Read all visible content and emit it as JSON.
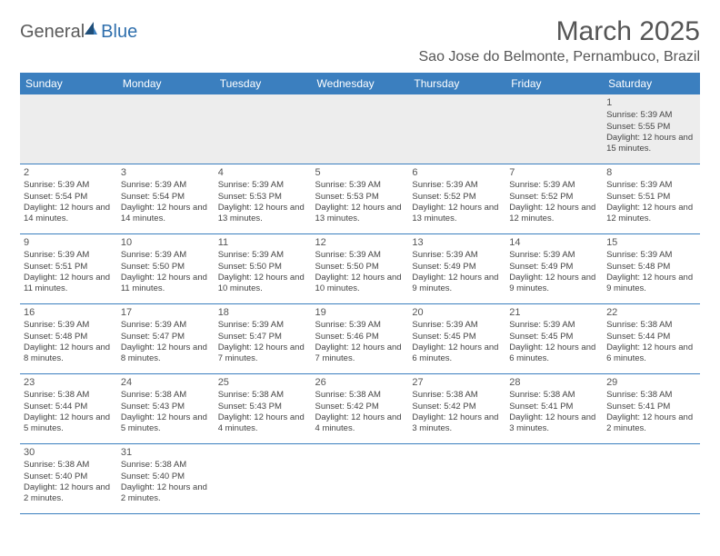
{
  "logo": {
    "text1": "General",
    "text2": "Blue",
    "sail_color_dark": "#1f4e79",
    "sail_color_light": "#3b7fbf"
  },
  "header": {
    "title": "March 2025",
    "location": "Sao Jose do Belmonte, Pernambuco, Brazil"
  },
  "colors": {
    "header_bg": "#3b7fbf",
    "header_text": "#ffffff",
    "border": "#3b7fbf",
    "text": "#444444",
    "empty_bg": "#ededed"
  },
  "daysOfWeek": [
    "Sunday",
    "Monday",
    "Tuesday",
    "Wednesday",
    "Thursday",
    "Friday",
    "Saturday"
  ],
  "startOffset": 6,
  "days": [
    {
      "n": 1,
      "sr": "5:39 AM",
      "ss": "5:55 PM",
      "dl": "12 hours and 15 minutes."
    },
    {
      "n": 2,
      "sr": "5:39 AM",
      "ss": "5:54 PM",
      "dl": "12 hours and 14 minutes."
    },
    {
      "n": 3,
      "sr": "5:39 AM",
      "ss": "5:54 PM",
      "dl": "12 hours and 14 minutes."
    },
    {
      "n": 4,
      "sr": "5:39 AM",
      "ss": "5:53 PM",
      "dl": "12 hours and 13 minutes."
    },
    {
      "n": 5,
      "sr": "5:39 AM",
      "ss": "5:53 PM",
      "dl": "12 hours and 13 minutes."
    },
    {
      "n": 6,
      "sr": "5:39 AM",
      "ss": "5:52 PM",
      "dl": "12 hours and 13 minutes."
    },
    {
      "n": 7,
      "sr": "5:39 AM",
      "ss": "5:52 PM",
      "dl": "12 hours and 12 minutes."
    },
    {
      "n": 8,
      "sr": "5:39 AM",
      "ss": "5:51 PM",
      "dl": "12 hours and 12 minutes."
    },
    {
      "n": 9,
      "sr": "5:39 AM",
      "ss": "5:51 PM",
      "dl": "12 hours and 11 minutes."
    },
    {
      "n": 10,
      "sr": "5:39 AM",
      "ss": "5:50 PM",
      "dl": "12 hours and 11 minutes."
    },
    {
      "n": 11,
      "sr": "5:39 AM",
      "ss": "5:50 PM",
      "dl": "12 hours and 10 minutes."
    },
    {
      "n": 12,
      "sr": "5:39 AM",
      "ss": "5:50 PM",
      "dl": "12 hours and 10 minutes."
    },
    {
      "n": 13,
      "sr": "5:39 AM",
      "ss": "5:49 PM",
      "dl": "12 hours and 9 minutes."
    },
    {
      "n": 14,
      "sr": "5:39 AM",
      "ss": "5:49 PM",
      "dl": "12 hours and 9 minutes."
    },
    {
      "n": 15,
      "sr": "5:39 AM",
      "ss": "5:48 PM",
      "dl": "12 hours and 9 minutes."
    },
    {
      "n": 16,
      "sr": "5:39 AM",
      "ss": "5:48 PM",
      "dl": "12 hours and 8 minutes."
    },
    {
      "n": 17,
      "sr": "5:39 AM",
      "ss": "5:47 PM",
      "dl": "12 hours and 8 minutes."
    },
    {
      "n": 18,
      "sr": "5:39 AM",
      "ss": "5:47 PM",
      "dl": "12 hours and 7 minutes."
    },
    {
      "n": 19,
      "sr": "5:39 AM",
      "ss": "5:46 PM",
      "dl": "12 hours and 7 minutes."
    },
    {
      "n": 20,
      "sr": "5:39 AM",
      "ss": "5:45 PM",
      "dl": "12 hours and 6 minutes."
    },
    {
      "n": 21,
      "sr": "5:39 AM",
      "ss": "5:45 PM",
      "dl": "12 hours and 6 minutes."
    },
    {
      "n": 22,
      "sr": "5:38 AM",
      "ss": "5:44 PM",
      "dl": "12 hours and 6 minutes."
    },
    {
      "n": 23,
      "sr": "5:38 AM",
      "ss": "5:44 PM",
      "dl": "12 hours and 5 minutes."
    },
    {
      "n": 24,
      "sr": "5:38 AM",
      "ss": "5:43 PM",
      "dl": "12 hours and 5 minutes."
    },
    {
      "n": 25,
      "sr": "5:38 AM",
      "ss": "5:43 PM",
      "dl": "12 hours and 4 minutes."
    },
    {
      "n": 26,
      "sr": "5:38 AM",
      "ss": "5:42 PM",
      "dl": "12 hours and 4 minutes."
    },
    {
      "n": 27,
      "sr": "5:38 AM",
      "ss": "5:42 PM",
      "dl": "12 hours and 3 minutes."
    },
    {
      "n": 28,
      "sr": "5:38 AM",
      "ss": "5:41 PM",
      "dl": "12 hours and 3 minutes."
    },
    {
      "n": 29,
      "sr": "5:38 AM",
      "ss": "5:41 PM",
      "dl": "12 hours and 2 minutes."
    },
    {
      "n": 30,
      "sr": "5:38 AM",
      "ss": "5:40 PM",
      "dl": "12 hours and 2 minutes."
    },
    {
      "n": 31,
      "sr": "5:38 AM",
      "ss": "5:40 PM",
      "dl": "12 hours and 2 minutes."
    }
  ],
  "labels": {
    "sunrise": "Sunrise:",
    "sunset": "Sunset:",
    "daylight": "Daylight:"
  }
}
